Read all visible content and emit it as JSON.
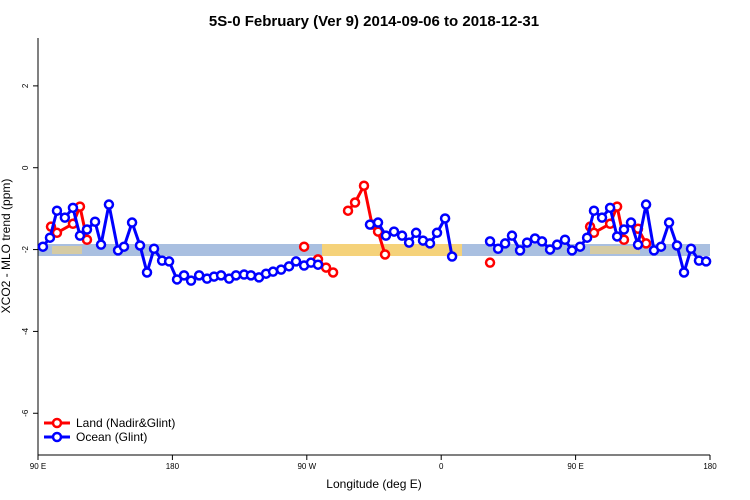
{
  "chart_data": {
    "type": "line",
    "title": "5S-0 February (Ver 9)   2014-09-06 to 2018-12-31",
    "x_label": "Longitude (deg E)",
    "y_label": "XCO2 - MLO trend (ppm)",
    "xlim": [
      90,
      540
    ],
    "ylim": [
      -7.02,
      3.17
    ],
    "xticks": [
      {
        "value": 90,
        "label": "90 E"
      },
      180,
      {
        "value": 270,
        "label": "90 W"
      },
      {
        "value": 360,
        "label": "0"
      },
      {
        "value": 450,
        "label": "90 E"
      },
      {
        "value": 540,
        "label": "180"
      }
    ],
    "yticks": [
      -6,
      -4,
      -2,
      0,
      2
    ],
    "legend": "bottom-left",
    "series": [
      {
        "name": "Land (Nadir&Glint)",
        "color": "#ff0000",
        "x": [
          98.7,
          102.7,
          113.4,
          118.1,
          122.8,
          null,
          268.2,
          null,
          277.5,
          282.9,
          287.6,
          null,
          297.6,
          302.3,
          308.3,
          313.7,
          317.7,
          322.4,
          null,
          392.7,
          null,
          459.7,
          462.3,
          473.1,
          477.8,
          482.4,
          null,
          491.8,
          497.2
        ],
        "values": [
          -1.44,
          -1.59,
          -1.37,
          -0.95,
          -1.76,
          null,
          -1.93,
          null,
          -2.24,
          -2.44,
          -2.56,
          null,
          -1.05,
          -0.85,
          -0.44,
          -1.39,
          -1.56,
          -2.12,
          null,
          -2.32,
          null,
          -1.44,
          -1.59,
          -1.37,
          -0.95,
          -1.76,
          null,
          -1.49,
          -1.85
        ]
      },
      {
        "name": "Ocean (Glint)",
        "color": "#0000ff",
        "x": [
          93.3,
          98,
          102.7,
          108,
          113.4,
          118.1,
          122.8,
          128.2,
          132.2,
          137.5,
          143.6,
          147.6,
          153,
          158.3,
          163,
          167.7,
          173.1,
          177.8,
          183.1,
          187.8,
          192.5,
          197.9,
          203.2,
          207.9,
          212.6,
          218,
          222.6,
          228,
          232.6,
          238,
          242.7,
          247.4,
          252.8,
          258.1,
          262.8,
          268.2,
          272.8,
          277.5,
          null,
          312.3,
          317.7,
          323,
          328.4,
          333.8,
          338.5,
          343.2,
          347.8,
          352.5,
          357.2,
          362.6,
          367.3,
          null,
          392.7,
          398.1,
          402.8,
          407.4,
          412.8,
          417.5,
          422.8,
          427.5,
          432.9,
          437.6,
          442.9,
          447.6,
          453,
          457.7,
          462.3,
          467.7,
          473.1,
          477.8,
          482.4,
          487.1,
          491.8,
          497.2,
          502.5,
          507.2,
          512.6,
          517.9,
          522.6,
          527.3,
          532.6,
          537.4
        ],
        "values": [
          -1.93,
          -1.71,
          -1.05,
          -1.22,
          -0.98,
          -1.66,
          -1.51,
          -1.32,
          -1.88,
          -0.9,
          -2.02,
          -1.93,
          -1.34,
          -1.9,
          -2.56,
          -1.98,
          -2.27,
          -2.29,
          -2.73,
          -2.63,
          -2.76,
          -2.63,
          -2.71,
          -2.66,
          -2.63,
          -2.71,
          -2.63,
          -2.61,
          -2.63,
          -2.68,
          -2.59,
          -2.54,
          -2.49,
          -2.41,
          -2.29,
          -2.39,
          -2.32,
          -2.37,
          null,
          -1.39,
          -1.34,
          -1.66,
          -1.56,
          -1.66,
          -1.83,
          -1.59,
          -1.78,
          -1.85,
          -1.59,
          -1.24,
          -2.17,
          null,
          -1.8,
          -1.98,
          -1.85,
          -1.66,
          -2.02,
          -1.83,
          -1.73,
          -1.8,
          -2.0,
          -1.88,
          -1.76,
          -2.02,
          -1.93,
          -1.71,
          -1.05,
          -1.22,
          -0.98,
          -1.68,
          -1.51,
          -1.34,
          -1.88,
          -0.9,
          -2.02,
          -1.93,
          -1.34,
          -1.9,
          -2.56,
          -1.98,
          -2.27,
          -2.29
        ]
      }
    ]
  }
}
